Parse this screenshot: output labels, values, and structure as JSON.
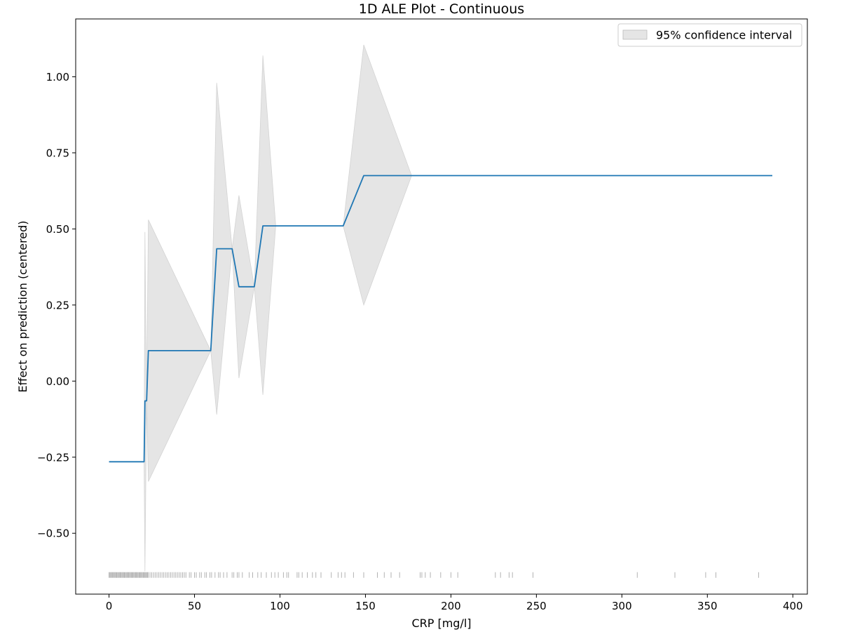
{
  "chart_data": {
    "type": "line",
    "title": "1D ALE Plot - Continuous",
    "xlabel": "CRP [mg/l]",
    "ylabel": "Effect on prediction (centered)",
    "xlim": [
      -19.5,
      408.5
    ],
    "ylim": [
      -0.7,
      1.19
    ],
    "xticks": [
      0,
      50,
      100,
      150,
      200,
      250,
      300,
      350,
      400
    ],
    "xtick_labels": [
      "0",
      "50",
      "100",
      "150",
      "200",
      "250",
      "300",
      "350",
      "400"
    ],
    "yticks": [
      -0.5,
      -0.25,
      0.0,
      0.25,
      0.5,
      0.75,
      1.0
    ],
    "ytick_labels": [
      "−0.50",
      "−0.25",
      "0.00",
      "0.25",
      "0.50",
      "0.75",
      "1.00"
    ],
    "grid": false,
    "legend_position": "top-right",
    "legend": [
      "95% confidence interval"
    ],
    "colors": {
      "line": "#1f77b4",
      "band": "#d3d3d3",
      "rug": "#000000"
    },
    "series": [
      {
        "type": "line",
        "x": [
          0,
          20.5,
          21,
          22,
          23,
          59.5,
          63,
          72,
          76,
          85,
          90,
          137,
          149,
          388
        ],
        "y": [
          -0.265,
          -0.265,
          -0.065,
          -0.065,
          0.1,
          0.1,
          0.435,
          0.435,
          0.31,
          0.31,
          0.51,
          0.51,
          0.675,
          0.675
        ]
      },
      {
        "name": "95% confidence interval",
        "type": "band",
        "x": [
          0,
          20.5,
          21,
          22,
          23,
          59.5,
          63,
          72,
          76,
          85,
          90,
          97.5,
          137,
          149,
          177,
          388
        ],
        "lower": [
          -0.265,
          -0.265,
          -0.625,
          -0.065,
          -0.33,
          0.1,
          -0.11,
          0.435,
          0.01,
          0.31,
          -0.045,
          0.51,
          0.51,
          0.25,
          0.675,
          0.675
        ],
        "upper": [
          -0.265,
          -0.265,
          0.49,
          -0.065,
          0.53,
          0.1,
          0.98,
          0.435,
          0.61,
          0.31,
          1.07,
          0.51,
          0.51,
          1.105,
          0.675,
          0.675
        ]
      }
    ],
    "rug": {
      "y": -0.637,
      "x": [
        0,
        0.5,
        1,
        1.5,
        2,
        2.5,
        3,
        3.5,
        4,
        4.5,
        5,
        5.5,
        6,
        6.5,
        7,
        7.5,
        8,
        8.5,
        9,
        9.5,
        10,
        10.5,
        11,
        11.5,
        12,
        12.5,
        13,
        13.5,
        14,
        14.5,
        15,
        15.5,
        16,
        16.5,
        17,
        17.5,
        18,
        18.5,
        19,
        19.5,
        20,
        20.5,
        21,
        21.5,
        22,
        22.5,
        23,
        24,
        25,
        26,
        27,
        28,
        29,
        30,
        31,
        32,
        33,
        34,
        35,
        36,
        37,
        38,
        39,
        40,
        41,
        42,
        43,
        44,
        45,
        47,
        48,
        50,
        51,
        53,
        54,
        56,
        57,
        59,
        60,
        62,
        64,
        65,
        67,
        69,
        72,
        73,
        75,
        76,
        78,
        82,
        84,
        87,
        89,
        92,
        95,
        97,
        99,
        102,
        104,
        105,
        110,
        111,
        113,
        116,
        119,
        121,
        124,
        130,
        134,
        136,
        138,
        143,
        149,
        157,
        161,
        165,
        170,
        182,
        183,
        185,
        188,
        194,
        200,
        204,
        226,
        229,
        234,
        236,
        248,
        309,
        331,
        349,
        355,
        380
      ]
    }
  }
}
